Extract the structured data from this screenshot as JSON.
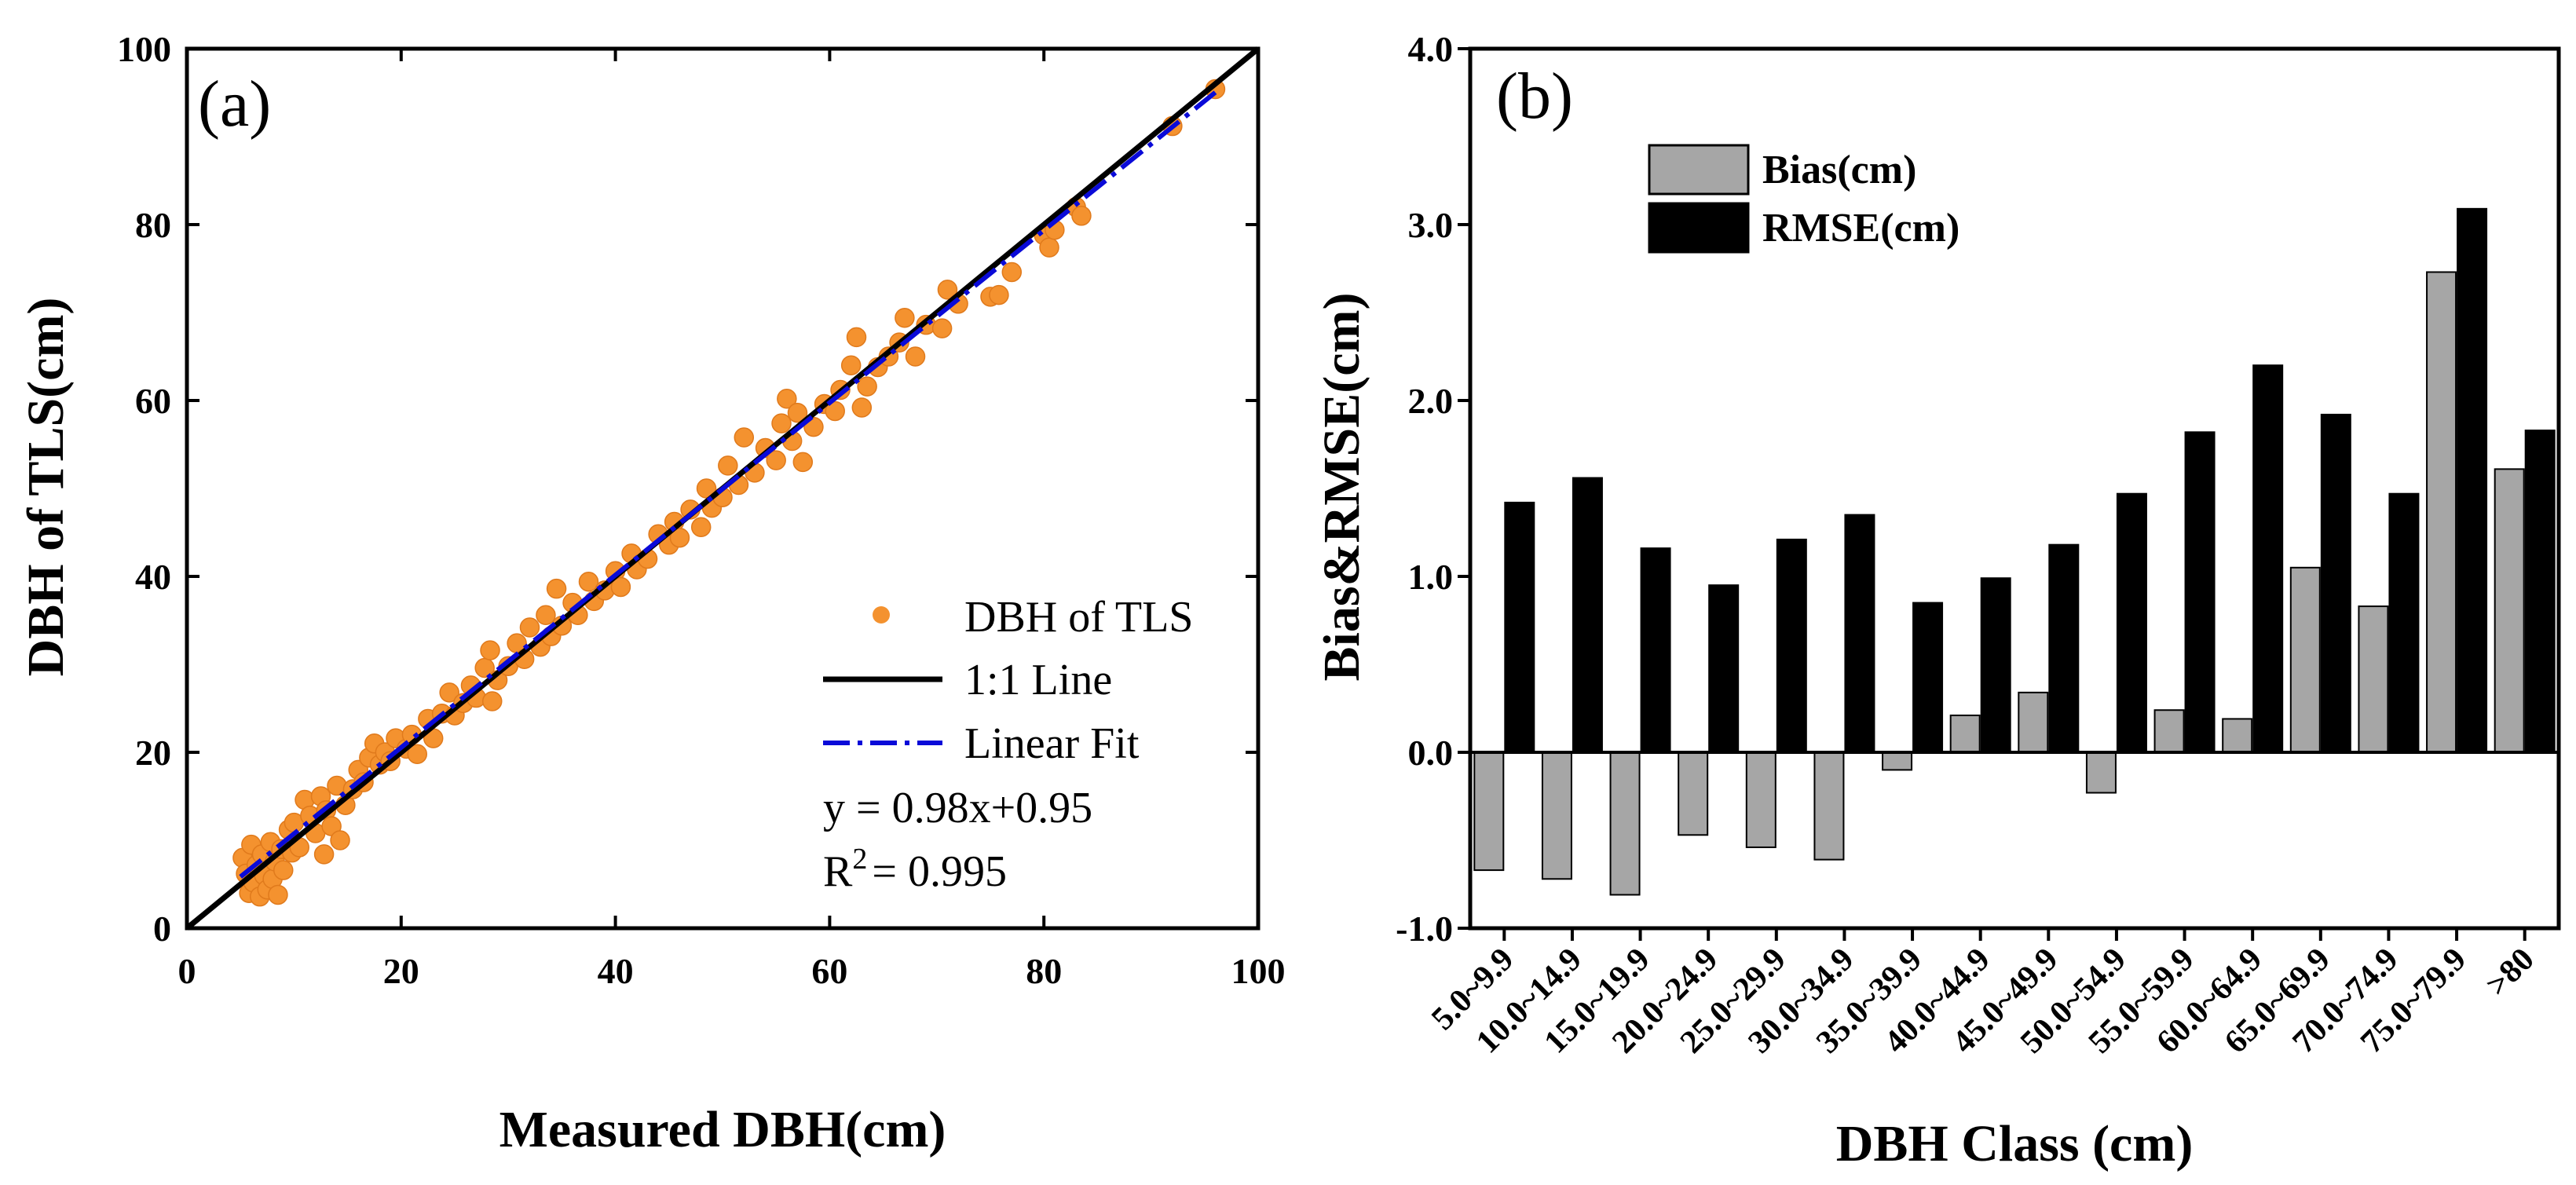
{
  "colors": {
    "scatter": "#f4922f",
    "one_to_one": "#000000",
    "fit": "#0a0ad8",
    "bias": "#a6a6a6",
    "rmse": "#000000"
  },
  "chart_data": [
    {
      "type": "scatter",
      "panel_label": "(a)",
      "xlabel": "Measured DBH(cm)",
      "ylabel": "DBH of TLS(cm)",
      "xlim": [
        0,
        100
      ],
      "ylim": [
        0,
        100
      ],
      "xticks": [
        "0",
        "20",
        "40",
        "60",
        "80",
        "100"
      ],
      "yticks": [
        "0",
        "20",
        "40",
        "60",
        "80",
        "100"
      ],
      "legend": {
        "scatter": "DBH of TLS",
        "one_to_one": "1:1 Line",
        "fit": "Linear Fit"
      },
      "equation": "y = 0.98x+0.95",
      "r2_prefix": "R",
      "r2_sup": "2",
      "r2_value": "= 0.995",
      "fit": {
        "slope": 0.98,
        "intercept": 0.95,
        "x_range": [
          5,
          96
        ]
      },
      "points": [
        [
          5.2,
          8.0
        ],
        [
          5.5,
          6.2
        ],
        [
          5.8,
          4.0
        ],
        [
          6.0,
          9.5
        ],
        [
          6.2,
          5.2
        ],
        [
          6.5,
          7.2
        ],
        [
          6.8,
          3.6
        ],
        [
          7.0,
          8.4
        ],
        [
          7.2,
          6.0
        ],
        [
          7.5,
          4.4
        ],
        [
          7.8,
          9.8
        ],
        [
          8.0,
          5.6
        ],
        [
          8.2,
          7.6
        ],
        [
          8.5,
          3.8
        ],
        [
          8.8,
          9.0
        ],
        [
          9.0,
          6.6
        ],
        [
          9.5,
          11.2
        ],
        [
          9.8,
          8.6
        ],
        [
          10.0,
          12.0
        ],
        [
          10.5,
          9.2
        ],
        [
          11.0,
          14.6
        ],
        [
          11.5,
          12.8
        ],
        [
          12.0,
          10.8
        ],
        [
          12.5,
          15.0
        ],
        [
          12.8,
          8.4
        ],
        [
          13.0,
          13.4
        ],
        [
          13.5,
          11.6
        ],
        [
          14.0,
          16.2
        ],
        [
          14.3,
          10.0
        ],
        [
          14.8,
          14.0
        ],
        [
          15.5,
          15.8
        ],
        [
          16.0,
          18.0
        ],
        [
          16.5,
          16.6
        ],
        [
          17.0,
          19.4
        ],
        [
          17.5,
          21.0
        ],
        [
          18.0,
          18.6
        ],
        [
          18.5,
          20.0
        ],
        [
          19.0,
          19.0
        ],
        [
          19.5,
          21.6
        ],
        [
          20.5,
          20.4
        ],
        [
          21.0,
          22.0
        ],
        [
          21.5,
          19.8
        ],
        [
          22.5,
          23.8
        ],
        [
          23.0,
          21.6
        ],
        [
          23.8,
          24.4
        ],
        [
          24.5,
          26.8
        ],
        [
          25.0,
          24.2
        ],
        [
          25.8,
          25.6
        ],
        [
          26.5,
          27.6
        ],
        [
          27.0,
          26.2
        ],
        [
          27.8,
          29.6
        ],
        [
          28.3,
          31.6
        ],
        [
          28.5,
          25.8
        ],
        [
          29.0,
          28.2
        ],
        [
          30.0,
          29.8
        ],
        [
          30.8,
          32.4
        ],
        [
          31.5,
          30.6
        ],
        [
          32.0,
          34.2
        ],
        [
          33.0,
          32.0
        ],
        [
          33.5,
          35.6
        ],
        [
          34.0,
          33.2
        ],
        [
          34.5,
          38.6
        ],
        [
          35.0,
          34.4
        ],
        [
          36.0,
          37.0
        ],
        [
          36.5,
          35.6
        ],
        [
          37.5,
          39.4
        ],
        [
          38.0,
          37.2
        ],
        [
          39.0,
          38.4
        ],
        [
          40.0,
          40.6
        ],
        [
          40.5,
          38.8
        ],
        [
          41.5,
          42.6
        ],
        [
          42.0,
          40.8
        ],
        [
          43.0,
          42.0
        ],
        [
          44.0,
          44.8
        ],
        [
          45.0,
          43.6
        ],
        [
          45.5,
          46.2
        ],
        [
          46.0,
          44.4
        ],
        [
          47.0,
          47.6
        ],
        [
          48.0,
          45.6
        ],
        [
          48.5,
          50.0
        ],
        [
          49.0,
          47.8
        ],
        [
          50.0,
          49.0
        ],
        [
          50.5,
          52.6
        ],
        [
          51.5,
          50.4
        ],
        [
          52.0,
          55.8
        ],
        [
          53.0,
          51.8
        ],
        [
          54.0,
          54.6
        ],
        [
          55.0,
          53.2
        ],
        [
          55.5,
          57.4
        ],
        [
          56.0,
          60.2
        ],
        [
          56.5,
          55.4
        ],
        [
          57.0,
          58.6
        ],
        [
          57.5,
          53.0
        ],
        [
          58.5,
          57.0
        ],
        [
          59.5,
          59.6
        ],
        [
          60.5,
          58.8
        ],
        [
          61.0,
          61.2
        ],
        [
          62.0,
          64.0
        ],
        [
          62.5,
          67.2
        ],
        [
          63.0,
          59.2
        ],
        [
          63.5,
          61.6
        ],
        [
          64.5,
          63.8
        ],
        [
          65.5,
          65.0
        ],
        [
          66.5,
          66.6
        ],
        [
          67.0,
          69.4
        ],
        [
          68.0,
          65.0
        ],
        [
          69.0,
          68.6
        ],
        [
          70.5,
          68.2
        ],
        [
          71.0,
          72.6
        ],
        [
          72.0,
          71.0
        ],
        [
          75.0,
          71.8
        ],
        [
          75.8,
          72.0
        ],
        [
          77.0,
          74.6
        ],
        [
          80.0,
          78.8
        ],
        [
          80.5,
          77.4
        ],
        [
          81.0,
          79.4
        ],
        [
          83.0,
          82.0
        ],
        [
          83.5,
          81.0
        ],
        [
          92.0,
          91.2
        ],
        [
          96.0,
          95.4
        ]
      ]
    },
    {
      "type": "bar",
      "panel_label": "(b)",
      "xlabel": "DBH Class (cm)",
      "ylabel": "Bias&RMSE(cm)",
      "ylim": [
        -1.0,
        4.0
      ],
      "yticks": [
        "-1.0",
        "0.0",
        "1.0",
        "2.0",
        "3.0",
        "4.0"
      ],
      "ytick_values": [
        -1.0,
        0.0,
        1.0,
        2.0,
        3.0,
        4.0
      ],
      "categories": [
        "5.0~9.9",
        "10.0~14.9",
        "15.0~19.9",
        "20.0~24.9",
        "25.0~29.9",
        "30.0~34.9",
        "35.0~39.9",
        "40.0~44.9",
        "45.0~49.9",
        "50.0~54.9",
        "55.0~59.9",
        "60.0~64.9",
        "65.0~69.9",
        "70.0~74.9",
        "75.0~79.9",
        ">80"
      ],
      "series": [
        {
          "name": "Bias(cm)",
          "values": [
            -0.67,
            -0.72,
            -0.81,
            -0.47,
            -0.54,
            -0.61,
            -0.1,
            0.21,
            0.34,
            -0.23,
            0.24,
            0.19,
            1.05,
            0.83,
            2.73,
            1.61
          ]
        },
        {
          "name": "RMSE(cm)",
          "values": [
            1.42,
            1.56,
            1.16,
            0.95,
            1.21,
            1.35,
            0.85,
            0.99,
            1.18,
            1.47,
            1.82,
            2.2,
            1.92,
            1.47,
            3.09,
            1.83
          ]
        }
      ],
      "legend_position": "top-left"
    }
  ]
}
